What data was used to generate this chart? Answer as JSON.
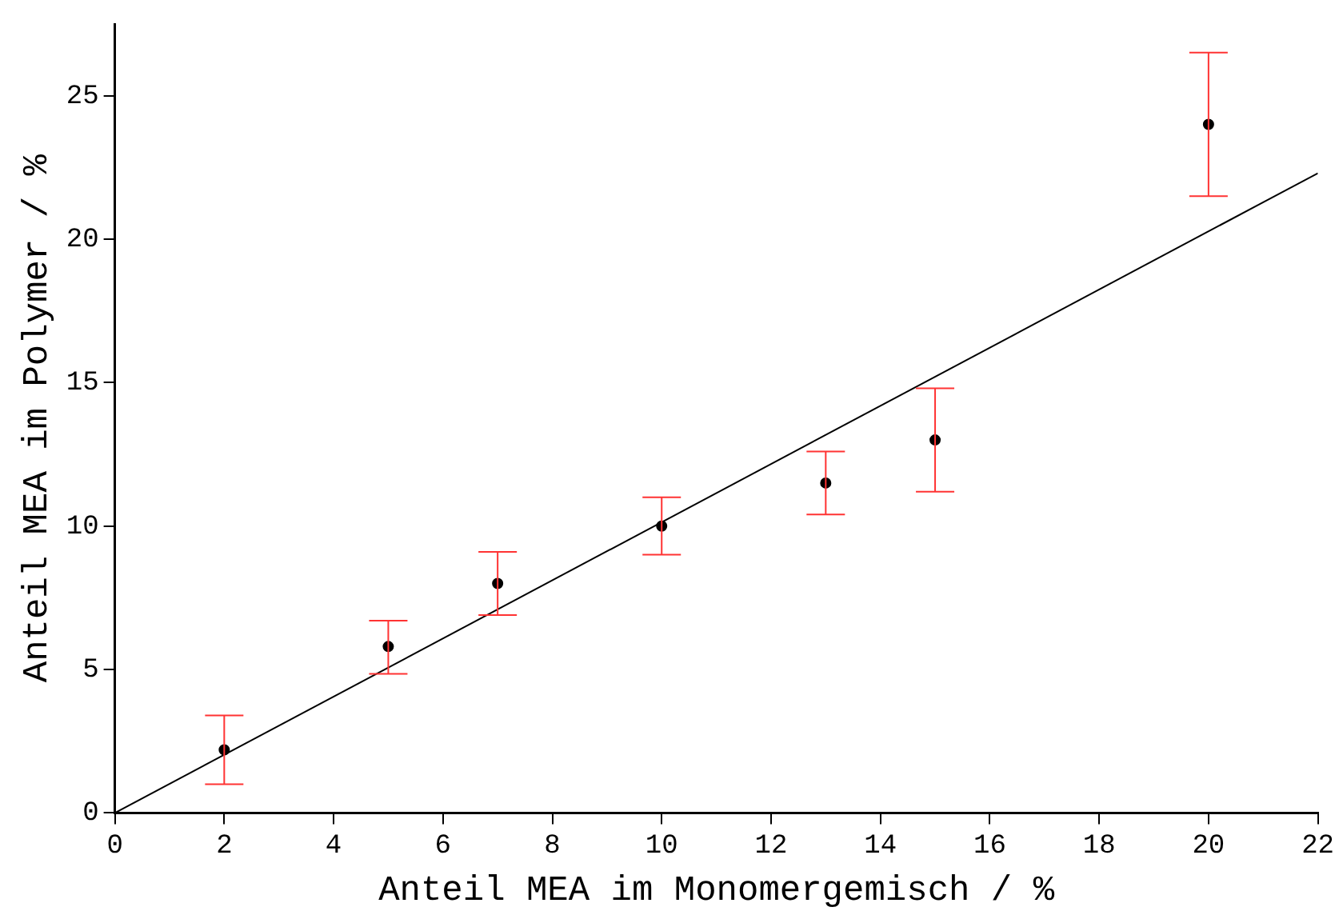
{
  "chart_data": {
    "type": "scatter",
    "xlabel": "Anteil MEA im Monomergemisch / %",
    "ylabel": "Anteil MEA im Polymer / %",
    "xlim": [
      0,
      22
    ],
    "xticks": [
      0,
      2,
      4,
      6,
      8,
      10,
      12,
      14,
      16,
      18,
      20,
      22
    ],
    "ylim": [
      0,
      27.5
    ],
    "yticks": [
      0,
      5,
      10,
      15,
      20,
      25
    ],
    "grid": false,
    "legend": false,
    "series": [
      {
        "marker": "circle",
        "color": "#000000",
        "x": [
          2,
          5,
          7,
          10,
          13,
          15,
          20
        ],
        "values": [
          2.2,
          5.8,
          8,
          10,
          11.5,
          13,
          24
        ],
        "errors": [
          [
            1,
            3.4
          ],
          [
            4.85,
            6.7
          ],
          [
            6.9,
            9.1
          ],
          [
            9,
            11
          ],
          [
            10.4,
            12.6
          ],
          [
            11.2,
            14.8
          ],
          [
            21.5,
            26.5
          ]
        ]
      },
      {
        "type": "line",
        "marker": "none",
        "color": "#000000",
        "x": [
          0,
          22
        ],
        "values": [
          0,
          22.3
        ]
      }
    ]
  }
}
